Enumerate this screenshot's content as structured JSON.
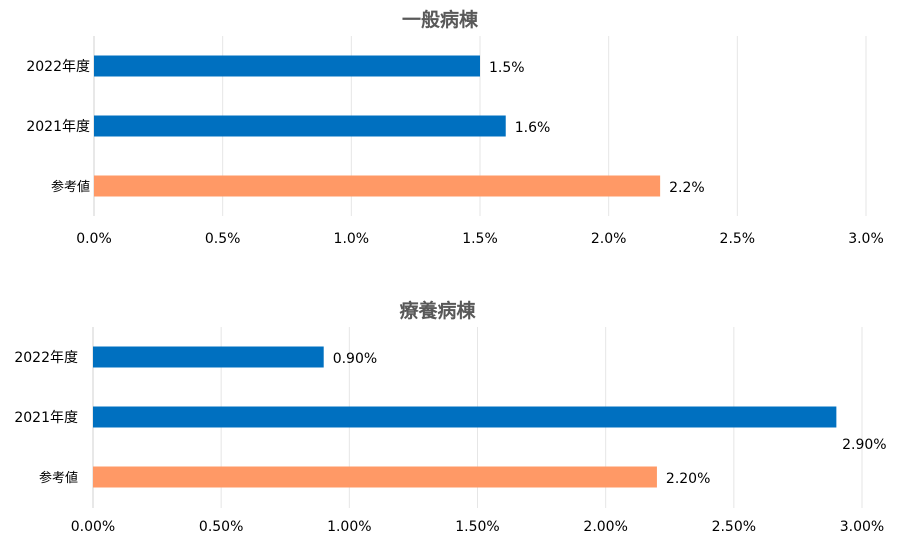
{
  "chart_data": [
    {
      "type": "bar",
      "orientation": "horizontal",
      "title": "一般病棟",
      "categories": [
        "2022年度",
        "2021年度",
        "参考値"
      ],
      "values": [
        1.5,
        1.6,
        2.2
      ],
      "value_labels": [
        "1.5%",
        "1.6%",
        "2.2%"
      ],
      "bar_colors": [
        "#0070c0",
        "#0070c0",
        "#ff9966"
      ],
      "xlim": [
        0,
        3.0
      ],
      "ticks": [
        0,
        0.5,
        1.0,
        1.5,
        2.0,
        2.5,
        3.0
      ],
      "tick_labels": [
        "0.0%",
        "0.5%",
        "1.0%",
        "1.5%",
        "2.0%",
        "2.5%",
        "3.0%"
      ],
      "grid": true,
      "legend": "none"
    },
    {
      "type": "bar",
      "orientation": "horizontal",
      "title": "療養病棟",
      "categories": [
        "2022年度",
        "2021年度",
        "参考値"
      ],
      "values": [
        0.9,
        2.9,
        2.2
      ],
      "value_labels": [
        "0.90%",
        "2.90%",
        "2.20%"
      ],
      "bar_colors": [
        "#0070c0",
        "#0070c0",
        "#ff9966"
      ],
      "xlim": [
        0,
        3.0
      ],
      "ticks": [
        0,
        0.5,
        1.0,
        1.5,
        2.0,
        2.5,
        3.0
      ],
      "tick_labels": [
        "0.00%",
        "0.50%",
        "1.00%",
        "1.50%",
        "2.00%",
        "2.50%",
        "3.00%"
      ],
      "grid": true,
      "legend": "none"
    }
  ]
}
